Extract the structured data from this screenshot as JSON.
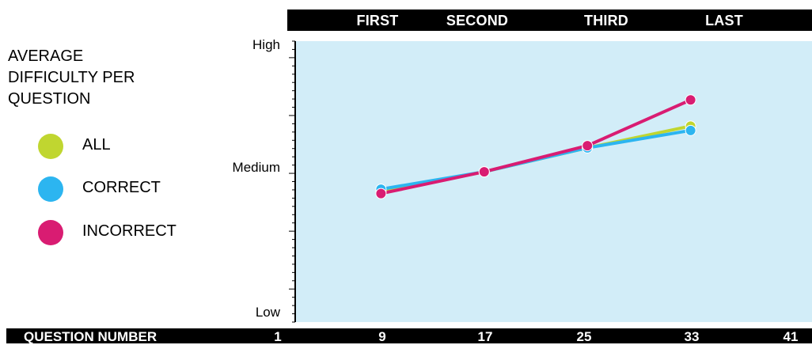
{
  "chart_data": {
    "type": "line",
    "title_lines": [
      "AVERAGE",
      "DIFFICULTY PER",
      "QUESTION"
    ],
    "xlabel": "QUESTION NUMBER",
    "x_ticks": [
      "1",
      "9",
      "17",
      "25",
      "33",
      "41"
    ],
    "y_tick_labels": [
      "High",
      "Medium",
      "Low"
    ],
    "segments": [
      "FIRST",
      "SECOND",
      "THIRD",
      "LAST"
    ],
    "series": [
      {
        "name": "ALL",
        "color": "#c0d630",
        "x": [
          9,
          17,
          25,
          33
        ],
        "y": [
          0.6,
          0.69,
          0.8,
          0.9
        ]
      },
      {
        "name": "CORRECT",
        "color": "#2cb5f0",
        "x": [
          9,
          17,
          25,
          33
        ],
        "y": [
          0.61,
          0.69,
          0.8,
          0.88
        ]
      },
      {
        "name": "INCORRECT",
        "color": "#d91c72",
        "x": [
          9,
          17,
          25,
          33
        ],
        "y": [
          0.59,
          0.69,
          0.81,
          1.02
        ]
      }
    ],
    "xlim": [
      1,
      41
    ],
    "ylim": [
      0,
      1.29
    ],
    "plot_background": "#d2edf8",
    "grid": false
  }
}
